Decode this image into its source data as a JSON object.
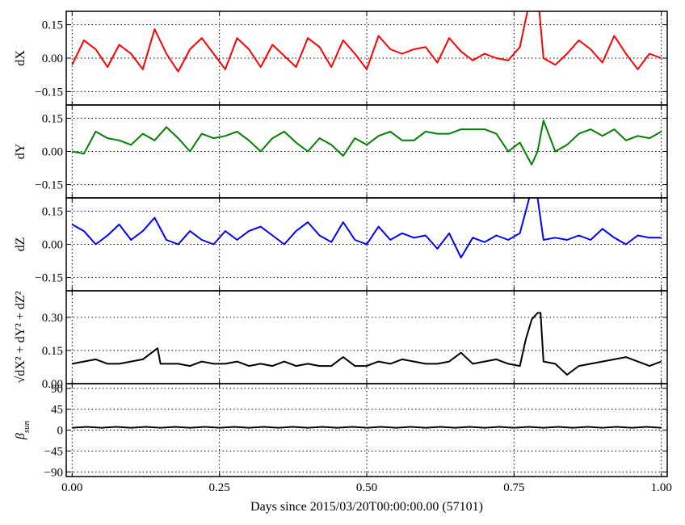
{
  "chart_data": {
    "type": "line",
    "xlabel": "Days since 2015/03/20T00:00:00.00 (57101)",
    "xlim": [
      -0.01,
      1.01
    ],
    "xticks": [
      "0.00",
      "0.25",
      "0.50",
      "0.75",
      "1.00"
    ],
    "xtick_values": [
      0,
      0.25,
      0.5,
      0.75,
      1.0
    ],
    "grid": true,
    "panels": [
      {
        "id": "dX",
        "ylabel": "dX",
        "color": "#ff0000",
        "ylim": [
          -0.21,
          0.21
        ],
        "yticks": [
          "0.15",
          "0.00",
          "−0.15"
        ],
        "ytick_values": [
          0.15,
          0,
          -0.15
        ],
        "x": [
          0,
          0.02,
          0.04,
          0.06,
          0.08,
          0.1,
          0.12,
          0.14,
          0.16,
          0.18,
          0.2,
          0.22,
          0.24,
          0.26,
          0.28,
          0.3,
          0.32,
          0.34,
          0.36,
          0.38,
          0.4,
          0.42,
          0.44,
          0.46,
          0.48,
          0.5,
          0.52,
          0.54,
          0.56,
          0.58,
          0.6,
          0.62,
          0.64,
          0.66,
          0.68,
          0.7,
          0.72,
          0.74,
          0.76,
          0.78,
          0.79,
          0.8,
          0.82,
          0.84,
          0.86,
          0.88,
          0.9,
          0.92,
          0.94,
          0.96,
          0.98,
          1.0
        ],
        "y": [
          -0.03,
          0.08,
          0.04,
          -0.04,
          0.06,
          0.02,
          -0.05,
          0.13,
          0.02,
          -0.06,
          0.04,
          0.09,
          0.02,
          -0.05,
          0.09,
          0.04,
          -0.04,
          0.06,
          0.01,
          -0.04,
          0.09,
          0.05,
          -0.04,
          0.08,
          0.02,
          -0.05,
          0.1,
          0.04,
          0.02,
          0.04,
          0.05,
          -0.02,
          0.09,
          0.03,
          -0.01,
          0.02,
          0.0,
          -0.01,
          0.05,
          0.3,
          0.3,
          0.0,
          -0.03,
          0.02,
          0.08,
          0.04,
          -0.02,
          0.1,
          0.02,
          -0.05,
          0.02,
          0.0
        ]
      },
      {
        "id": "dY",
        "ylabel": "dY",
        "color": "#008000",
        "ylim": [
          -0.21,
          0.21
        ],
        "yticks": [
          "0.15",
          "0.00",
          "−0.15"
        ],
        "ytick_values": [
          0.15,
          0,
          -0.15
        ],
        "x": [
          0,
          0.02,
          0.04,
          0.06,
          0.08,
          0.1,
          0.12,
          0.14,
          0.16,
          0.18,
          0.2,
          0.22,
          0.24,
          0.26,
          0.28,
          0.3,
          0.32,
          0.34,
          0.36,
          0.38,
          0.4,
          0.42,
          0.44,
          0.46,
          0.48,
          0.5,
          0.52,
          0.54,
          0.56,
          0.58,
          0.6,
          0.62,
          0.64,
          0.66,
          0.68,
          0.7,
          0.72,
          0.74,
          0.76,
          0.78,
          0.79,
          0.8,
          0.82,
          0.84,
          0.86,
          0.88,
          0.9,
          0.92,
          0.94,
          0.96,
          0.98,
          1.0
        ],
        "y": [
          0.0,
          -0.01,
          0.09,
          0.06,
          0.05,
          0.03,
          0.08,
          0.05,
          0.11,
          0.06,
          0.0,
          0.08,
          0.06,
          0.07,
          0.09,
          0.05,
          0.0,
          0.06,
          0.09,
          0.04,
          0.0,
          0.06,
          0.03,
          -0.02,
          0.06,
          0.03,
          0.07,
          0.09,
          0.05,
          0.05,
          0.09,
          0.08,
          0.08,
          0.1,
          0.1,
          0.1,
          0.08,
          0.0,
          0.04,
          -0.06,
          0.0,
          0.14,
          0.0,
          0.03,
          0.08,
          0.1,
          0.07,
          0.1,
          0.05,
          0.07,
          0.06,
          0.09
        ]
      },
      {
        "id": "dZ",
        "ylabel": "dZ",
        "color": "#0000ff",
        "ylim": [
          -0.21,
          0.21
        ],
        "yticks": [
          "0.15",
          "0.00",
          "−0.15"
        ],
        "ytick_values": [
          0.15,
          0,
          -0.15
        ],
        "x": [
          0,
          0.02,
          0.04,
          0.06,
          0.08,
          0.1,
          0.12,
          0.14,
          0.16,
          0.18,
          0.2,
          0.22,
          0.24,
          0.26,
          0.28,
          0.3,
          0.32,
          0.34,
          0.36,
          0.38,
          0.4,
          0.42,
          0.44,
          0.46,
          0.48,
          0.5,
          0.52,
          0.54,
          0.56,
          0.58,
          0.6,
          0.62,
          0.64,
          0.66,
          0.68,
          0.7,
          0.72,
          0.74,
          0.76,
          0.78,
          0.79,
          0.8,
          0.82,
          0.84,
          0.86,
          0.88,
          0.9,
          0.92,
          0.94,
          0.96,
          0.98,
          1.0
        ],
        "y": [
          0.09,
          0.06,
          0.0,
          0.04,
          0.09,
          0.02,
          0.06,
          0.12,
          0.02,
          0.0,
          0.06,
          0.02,
          0.0,
          0.06,
          0.02,
          0.06,
          0.08,
          0.04,
          0.0,
          0.06,
          0.1,
          0.04,
          0.01,
          0.1,
          0.02,
          0.0,
          0.08,
          0.02,
          0.05,
          0.03,
          0.04,
          -0.02,
          0.05,
          -0.06,
          0.03,
          0.01,
          0.04,
          0.02,
          0.05,
          0.25,
          0.21,
          0.02,
          0.03,
          0.02,
          0.04,
          0.02,
          0.07,
          0.03,
          0.0,
          0.04,
          0.03,
          0.03
        ]
      },
      {
        "id": "dR",
        "ylabel": "√dX² + dY² + dZ²",
        "color": "#000000",
        "ylim": [
          0.0,
          0.42
        ],
        "yticks": [
          "0.30",
          "0.15",
          "0.00"
        ],
        "ytick_values": [
          0.3,
          0.15,
          0
        ],
        "x": [
          0,
          0.02,
          0.04,
          0.06,
          0.08,
          0.1,
          0.12,
          0.14,
          0.145,
          0.15,
          0.18,
          0.2,
          0.22,
          0.24,
          0.26,
          0.28,
          0.3,
          0.32,
          0.34,
          0.36,
          0.38,
          0.4,
          0.42,
          0.44,
          0.46,
          0.48,
          0.5,
          0.52,
          0.54,
          0.56,
          0.58,
          0.6,
          0.62,
          0.64,
          0.66,
          0.68,
          0.7,
          0.72,
          0.74,
          0.76,
          0.77,
          0.78,
          0.79,
          0.795,
          0.8,
          0.82,
          0.84,
          0.86,
          0.88,
          0.9,
          0.92,
          0.94,
          0.96,
          0.98,
          1.0
        ],
        "y": [
          0.09,
          0.1,
          0.11,
          0.09,
          0.09,
          0.1,
          0.11,
          0.15,
          0.16,
          0.09,
          0.09,
          0.08,
          0.1,
          0.09,
          0.09,
          0.1,
          0.08,
          0.09,
          0.08,
          0.1,
          0.08,
          0.09,
          0.08,
          0.08,
          0.12,
          0.08,
          0.08,
          0.1,
          0.09,
          0.11,
          0.1,
          0.09,
          0.09,
          0.1,
          0.14,
          0.09,
          0.1,
          0.11,
          0.09,
          0.08,
          0.2,
          0.29,
          0.32,
          0.32,
          0.1,
          0.09,
          0.04,
          0.08,
          0.09,
          0.1,
          0.11,
          0.12,
          0.1,
          0.08,
          0.1
        ]
      },
      {
        "id": "beta",
        "ylabel": "β_sun",
        "color": "#000000",
        "ylim": [
          -100,
          100
        ],
        "yticks": [
          "90",
          "45",
          "0",
          "−45",
          "−90"
        ],
        "ytick_values": [
          90,
          45,
          0,
          -45,
          -90
        ],
        "x": [
          0,
          0.025,
          0.05,
          0.075,
          0.1,
          0.125,
          0.15,
          0.175,
          0.2,
          0.225,
          0.25,
          0.275,
          0.3,
          0.325,
          0.35,
          0.375,
          0.4,
          0.425,
          0.45,
          0.475,
          0.5,
          0.525,
          0.55,
          0.575,
          0.6,
          0.625,
          0.65,
          0.675,
          0.7,
          0.725,
          0.75,
          0.775,
          0.8,
          0.825,
          0.85,
          0.875,
          0.9,
          0.925,
          0.95,
          0.975,
          1.0
        ],
        "y": [
          5,
          7,
          5,
          7,
          5,
          7,
          5,
          7,
          5,
          7,
          5,
          7,
          5,
          7,
          5,
          7,
          5,
          7,
          5,
          7,
          5,
          7,
          5,
          7,
          5,
          7,
          5,
          7,
          5,
          7,
          5,
          7,
          5,
          7,
          5,
          7,
          5,
          7,
          5,
          7,
          5
        ]
      }
    ]
  }
}
